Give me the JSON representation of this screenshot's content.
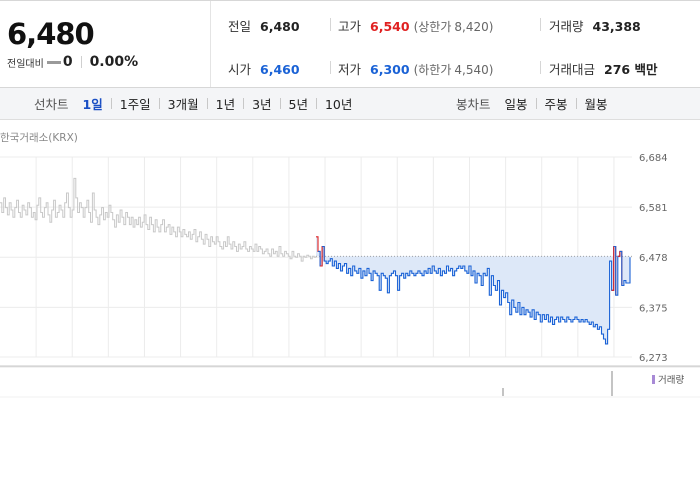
{
  "quote": {
    "price": "6,480",
    "change_label": "전일대비",
    "change_value": "0",
    "change_rate": "0.00%",
    "stats": {
      "prev_close_label": "전일",
      "prev_close": "6,480",
      "high_label": "고가",
      "high": "6,540",
      "upper_limit_label": "(상한가",
      "upper_limit": "8,420)",
      "volume_label": "거래량",
      "volume": "43,388",
      "open_label": "시가",
      "open": "6,460",
      "low_label": "저가",
      "low": "6,300",
      "lower_limit_label": "(하한가",
      "lower_limit": "4,540)",
      "amount_label": "거래대금",
      "amount": "276 백만"
    },
    "colors": {
      "up": "#e02020",
      "down": "#1a62d6"
    }
  },
  "tabs": {
    "line_label": "선차트",
    "line_periods": [
      "1일",
      "1주일",
      "3개월",
      "1년",
      "3년",
      "5년",
      "10년"
    ],
    "selected": "1일",
    "candle_label": "봉차트",
    "candle_periods": [
      "일봉",
      "주봉",
      "월봉"
    ]
  },
  "exchange_label": "한국거래소(KRX)",
  "volume_legend": "거래량",
  "chart_data": {
    "type": "line",
    "ylim": [
      6273,
      6684
    ],
    "y_ticks": [
      6684,
      6581,
      6478,
      6375,
      6273
    ],
    "y_tick_labels": [
      "6,684",
      "6,581",
      "6,478",
      "6,375",
      "6,273"
    ],
    "reference": 6480,
    "grid": true,
    "colors": {
      "past": "#c8c8c8",
      "up": "#e02020",
      "down": "#1a62d6",
      "fill": "#dde8f8"
    },
    "series": [
      {
        "values": [
          6590,
          6570,
          6600,
          6580,
          6565,
          6590,
          6575,
          6560,
          6580,
          6595,
          6570,
          6560,
          6585,
          6575,
          6565,
          6590,
          6580,
          6560,
          6570,
          6555,
          6585,
          6600,
          6570,
          6560,
          6580,
          6590,
          6565,
          6550,
          6575,
          6595,
          6560,
          6570,
          6585,
          6575,
          6560,
          6590,
          6610,
          6580,
          6560,
          6575,
          6640,
          6600,
          6570,
          6590,
          6580,
          6560,
          6580,
          6595,
          6570,
          6550,
          6610,
          6575,
          6560,
          6545,
          6565,
          6580,
          6555,
          6570,
          6560,
          6585,
          6570,
          6555,
          6540,
          6565,
          6550,
          6575,
          6560,
          6545,
          6570,
          6560,
          6545,
          6560,
          6540,
          6555,
          6545,
          6560,
          6540,
          6550,
          6565,
          6545,
          6535,
          6560,
          6545,
          6530,
          6555,
          6540,
          6530,
          6545,
          6555,
          6530,
          6540,
          6545,
          6525,
          6540,
          6530,
          6520,
          6540,
          6530,
          6520,
          6535,
          6525,
          6520,
          6530,
          6515,
          6525,
          6535,
          6510,
          6520,
          6530,
          6515,
          6505,
          6525,
          6515,
          6500,
          6520,
          6510,
          6505,
          6520,
          6510,
          6500,
          6495,
          6510,
          6500,
          6520,
          6505,
          6495,
          6510,
          6500,
          6490,
          6505,
          6495,
          6500,
          6510,
          6495,
          6490,
          6500,
          6495,
          6490,
          6505,
          6490,
          6500,
          6495,
          6485,
          6490,
          6495,
          6485,
          6480,
          6495,
          6485,
          6490,
          6480,
          6500,
          6485,
          6480,
          6490,
          6485,
          6480,
          6475,
          6490,
          6480,
          6478,
          6485,
          6480,
          6470,
          6480,
          6478,
          6482,
          6480,
          6475,
          6480,
          6478,
          6480
        ]
      },
      {
        "values": [
          6520,
          6490,
          6460,
          6500,
          6470,
          6465,
          6470,
          6475,
          6460,
          6470,
          6455,
          6465,
          6450,
          6460,
          6465,
          6445,
          6455,
          6440,
          6460,
          6450,
          6445,
          6455,
          6435,
          6450,
          6440,
          6455,
          6445,
          6430,
          6450,
          6445,
          6440,
          6410,
          6445,
          6440,
          6435,
          6405,
          6440,
          6445,
          6450,
          6440,
          6410,
          6440,
          6445,
          6435,
          6445,
          6440,
          6450,
          6445,
          6440,
          6445,
          6450,
          6445,
          6440,
          6450,
          6445,
          6455,
          6445,
          6460,
          6450,
          6445,
          6455,
          6440,
          6450,
          6445,
          6460,
          6450,
          6455,
          6440,
          6450,
          6455,
          6460,
          6455,
          6460,
          6450,
          6445,
          6460,
          6440,
          6450,
          6425,
          6445,
          6440,
          6420,
          6445,
          6440,
          6455,
          6400,
          6440,
          6420,
          6410,
          6430,
          6380,
          6410,
          6395,
          6405,
          6385,
          6360,
          6390,
          6375,
          6365,
          6385,
          6360,
          6375,
          6360,
          6370,
          6365,
          6355,
          6370,
          6350,
          6365,
          6360,
          6345,
          6360,
          6350,
          6360,
          6345,
          6355,
          6340,
          6350,
          6355,
          6345,
          6355,
          6350,
          6345,
          6355,
          6350,
          6345,
          6350,
          6355,
          6350,
          6345,
          6350,
          6345,
          6350,
          6345,
          6340,
          6345,
          6335,
          6340,
          6330,
          6335,
          6320,
          6310,
          6300,
          6330,
          6470,
          6410,
          6500,
          6400,
          6480,
          6490,
          6420,
          6430,
          6425,
          6425,
          6478
        ]
      }
    ]
  }
}
